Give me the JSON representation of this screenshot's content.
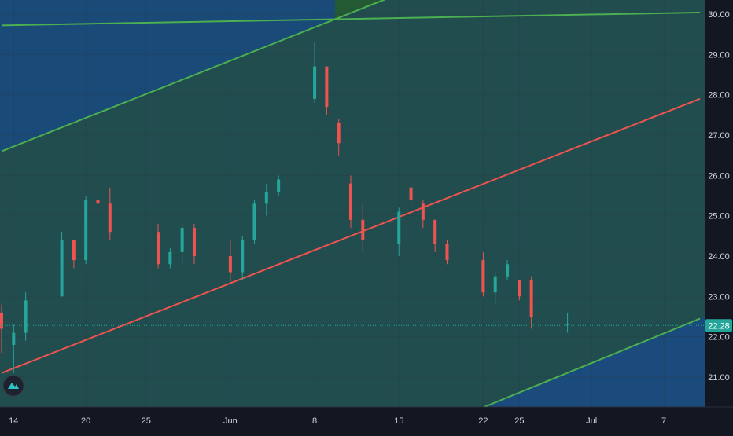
{
  "chart_data": {
    "type": "candlestick",
    "y_axis": {
      "range": [
        20.25,
        30.3
      ],
      "ticks": [
        "21.00",
        "22.00",
        "23.00",
        "24.00",
        "25.00",
        "26.00",
        "27.00",
        "28.00",
        "29.00",
        "30.00"
      ],
      "position": "right"
    },
    "x_axis": {
      "range": [
        "2020-05-13",
        "2020-07-10"
      ],
      "ticks": [
        {
          "date": "2020-05-14",
          "label": "14"
        },
        {
          "date": "2020-05-20",
          "label": "20"
        },
        {
          "date": "2020-05-25",
          "label": "25"
        },
        {
          "date": "2020-06-01",
          "label": "Jun"
        },
        {
          "date": "2020-06-08",
          "label": "8"
        },
        {
          "date": "2020-06-15",
          "label": "15"
        },
        {
          "date": "2020-06-22",
          "label": "22"
        },
        {
          "date": "2020-06-25",
          "label": "25"
        },
        {
          "date": "2020-07-01",
          "label": "Jul"
        },
        {
          "date": "2020-07-07",
          "label": "7"
        }
      ]
    },
    "last_price": 22.28,
    "last_price_label": "22.28",
    "grid": true,
    "candles": [
      {
        "date": "2020-05-13",
        "open": 22.6,
        "high": 22.8,
        "low": 21.6,
        "close": 22.2
      },
      {
        "date": "2020-05-14",
        "open": 21.8,
        "high": 22.3,
        "low": 21.1,
        "close": 22.1
      },
      {
        "date": "2020-05-15",
        "open": 22.1,
        "high": 23.1,
        "low": 21.9,
        "close": 22.9
      },
      {
        "date": "2020-05-18",
        "open": 23.0,
        "high": 24.6,
        "low": 23.0,
        "close": 24.4
      },
      {
        "date": "2020-05-19",
        "open": 24.4,
        "high": 24.4,
        "low": 23.7,
        "close": 23.9
      },
      {
        "date": "2020-05-20",
        "open": 23.9,
        "high": 25.5,
        "low": 23.8,
        "close": 25.4
      },
      {
        "date": "2020-05-21",
        "open": 25.4,
        "high": 25.7,
        "low": 25.1,
        "close": 25.3
      },
      {
        "date": "2020-05-22",
        "open": 25.3,
        "high": 25.7,
        "low": 24.4,
        "close": 24.6
      },
      {
        "date": "2020-05-26",
        "open": 24.6,
        "high": 24.8,
        "low": 23.7,
        "close": 23.8
      },
      {
        "date": "2020-05-27",
        "open": 23.8,
        "high": 24.2,
        "low": 23.7,
        "close": 24.1
      },
      {
        "date": "2020-05-28",
        "open": 24.1,
        "high": 24.8,
        "low": 23.8,
        "close": 24.7
      },
      {
        "date": "2020-05-29",
        "open": 24.7,
        "high": 24.8,
        "low": 23.8,
        "close": 24.0
      },
      {
        "date": "2020-06-01",
        "open": 24.0,
        "high": 24.4,
        "low": 23.3,
        "close": 23.6
      },
      {
        "date": "2020-06-02",
        "open": 23.6,
        "high": 24.5,
        "low": 23.4,
        "close": 24.4
      },
      {
        "date": "2020-06-03",
        "open": 24.4,
        "high": 25.4,
        "low": 24.3,
        "close": 25.3
      },
      {
        "date": "2020-06-04",
        "open": 25.3,
        "high": 25.8,
        "low": 25.0,
        "close": 25.6
      },
      {
        "date": "2020-06-05",
        "open": 25.6,
        "high": 26.0,
        "low": 25.5,
        "close": 25.9
      },
      {
        "date": "2020-06-08",
        "open": 27.9,
        "high": 29.3,
        "low": 27.8,
        "close": 28.7
      },
      {
        "date": "2020-06-09",
        "open": 28.7,
        "high": 28.7,
        "low": 27.5,
        "close": 27.7
      },
      {
        "date": "2020-06-10",
        "open": 27.3,
        "high": 27.4,
        "low": 26.5,
        "close": 26.8
      },
      {
        "date": "2020-06-11",
        "open": 25.8,
        "high": 26.0,
        "low": 24.7,
        "close": 24.9
      },
      {
        "date": "2020-06-12",
        "open": 24.9,
        "high": 25.3,
        "low": 24.1,
        "close": 24.4
      },
      {
        "date": "2020-06-15",
        "open": 24.3,
        "high": 25.2,
        "low": 24.0,
        "close": 25.1
      },
      {
        "date": "2020-06-16",
        "open": 25.7,
        "high": 25.9,
        "low": 25.2,
        "close": 25.4
      },
      {
        "date": "2020-06-17",
        "open": 25.3,
        "high": 25.4,
        "low": 24.7,
        "close": 24.9
      },
      {
        "date": "2020-06-18",
        "open": 24.9,
        "high": 24.9,
        "low": 24.1,
        "close": 24.3
      },
      {
        "date": "2020-06-19",
        "open": 24.3,
        "high": 24.4,
        "low": 23.8,
        "close": 23.9
      },
      {
        "date": "2020-06-22",
        "open": 23.9,
        "high": 24.1,
        "low": 23.0,
        "close": 23.1
      },
      {
        "date": "2020-06-23",
        "open": 23.1,
        "high": 23.6,
        "low": 22.8,
        "close": 23.5
      },
      {
        "date": "2020-06-24",
        "open": 23.5,
        "high": 23.9,
        "low": 23.4,
        "close": 23.8
      },
      {
        "date": "2020-06-25",
        "open": 23.4,
        "high": 23.4,
        "low": 22.9,
        "close": 23.0
      },
      {
        "date": "2020-06-26",
        "open": 23.4,
        "high": 23.5,
        "low": 22.2,
        "close": 22.5
      },
      {
        "date": "2020-06-29",
        "open": 22.3,
        "high": 22.6,
        "low": 22.1,
        "close": 22.3
      }
    ],
    "trend_lines": [
      {
        "color": "#ef5350",
        "points": [
          [
            "2020-05-13",
            21.1
          ],
          [
            "2020-07-10",
            27.9
          ]
        ]
      },
      {
        "color": "#4caf50",
        "points": [
          [
            "2020-05-13",
            26.6
          ],
          [
            "2020-06-15",
            30.5
          ]
        ]
      },
      {
        "color": "#4caf50",
        "points": [
          [
            "2020-06-22",
            20.25
          ],
          [
            "2020-07-10",
            22.45
          ]
        ]
      },
      {
        "color": "#4caf50",
        "points": [
          [
            "2020-05-13",
            29.72
          ],
          [
            "2020-07-10",
            30.04
          ]
        ]
      }
    ],
    "colors": {
      "background": "#131722",
      "channel_fill": "#214d4f",
      "upper_zone_fill": "#1a4a78",
      "lower_zone_fill": "#1b4a7c",
      "top_zone_fill": "#235a33",
      "candle_up": "#26a69a",
      "candle_down": "#ef5350",
      "axis_text": "#d1d4dc",
      "last_price_line": "#26a69a",
      "grid": "#2a3a44"
    }
  },
  "logo": {
    "icon": "tradingview-logo-icon"
  }
}
